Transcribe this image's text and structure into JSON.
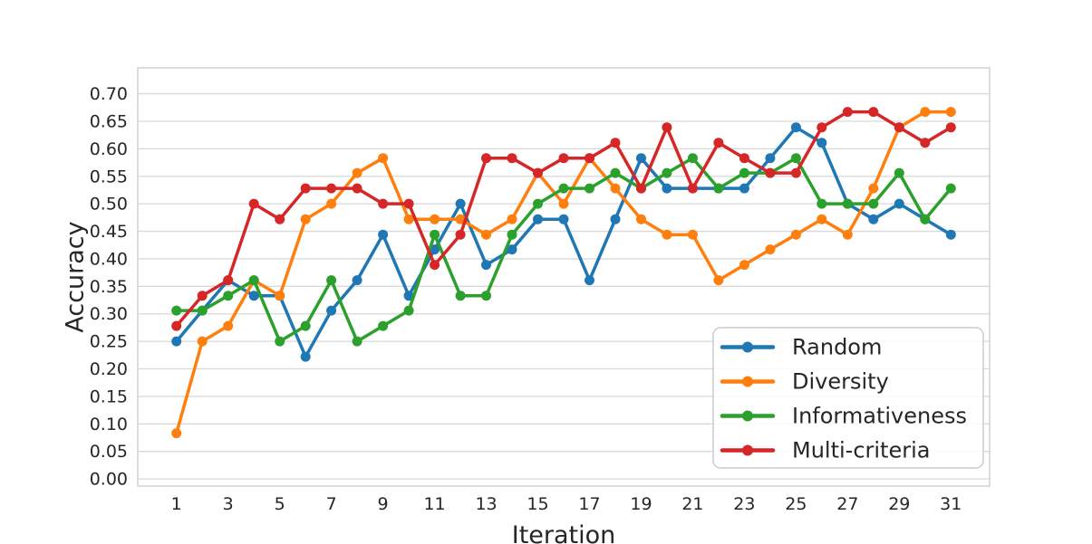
{
  "page": {
    "background": "#ffffff",
    "tick_label_color": "#262626",
    "grid_color": "#d9d9d9",
    "spine_color": "#d2d2d2"
  },
  "chart_data": {
    "type": "line",
    "title": "",
    "xlabel": "Iteration",
    "ylabel": "Accuracy",
    "grid": "horizontal",
    "xlim": [
      -0.5,
      32.5
    ],
    "ylim": [
      -0.013,
      0.747
    ],
    "x_tick_labels": [
      "1",
      "3",
      "5",
      "7",
      "9",
      "11",
      "13",
      "15",
      "17",
      "19",
      "21",
      "23",
      "25",
      "27",
      "29",
      "31"
    ],
    "x_tick_values": [
      1,
      3,
      5,
      7,
      9,
      11,
      13,
      15,
      17,
      19,
      21,
      23,
      25,
      27,
      29,
      31
    ],
    "y_tick_labels": [
      "0.00",
      "0.05",
      "0.10",
      "0.15",
      "0.20",
      "0.25",
      "0.30",
      "0.35",
      "0.40",
      "0.45",
      "0.50",
      "0.55",
      "0.60",
      "0.65",
      "0.70"
    ],
    "y_tick_values": [
      0.0,
      0.05,
      0.1,
      0.15,
      0.2,
      0.25,
      0.3,
      0.35,
      0.4,
      0.45,
      0.5,
      0.55,
      0.6,
      0.65,
      0.7
    ],
    "x": [
      1,
      2,
      3,
      4,
      5,
      6,
      7,
      8,
      9,
      10,
      11,
      12,
      13,
      14,
      15,
      16,
      17,
      18,
      19,
      20,
      21,
      22,
      23,
      24,
      25,
      26,
      27,
      28,
      29,
      30,
      31
    ],
    "legend": {
      "position": "lower-right",
      "background": "rgba(255,255,255,0.85)",
      "border_color": "#cccccc",
      "entries": [
        "Random",
        "Diversity",
        "Informativeness",
        "Multi-criteria"
      ]
    },
    "series": [
      {
        "name": "Random",
        "color": "#1f77b4",
        "values": [
          0.25,
          0.306,
          0.361,
          0.333,
          0.333,
          0.222,
          0.306,
          0.361,
          0.444,
          0.333,
          0.417,
          0.5,
          0.389,
          0.417,
          0.472,
          0.472,
          0.361,
          0.472,
          0.583,
          0.528,
          0.528,
          0.528,
          0.528,
          0.583,
          0.639,
          0.611,
          0.5,
          0.472,
          0.5,
          0.472,
          0.444
        ]
      },
      {
        "name": "Diversity",
        "color": "#ff7f0e",
        "values": [
          0.083,
          0.25,
          0.278,
          0.361,
          0.333,
          0.472,
          0.5,
          0.556,
          0.583,
          0.472,
          0.472,
          0.472,
          0.444,
          0.472,
          0.556,
          0.5,
          0.583,
          0.528,
          0.472,
          0.444,
          0.444,
          0.361,
          0.389,
          0.417,
          0.444,
          0.472,
          0.444,
          0.528,
          0.639,
          0.667,
          0.667
        ]
      },
      {
        "name": "Informativeness",
        "color": "#2ca02c",
        "values": [
          0.306,
          0.306,
          0.333,
          0.361,
          0.25,
          0.278,
          0.361,
          0.25,
          0.278,
          0.306,
          0.444,
          0.333,
          0.333,
          0.444,
          0.5,
          0.528,
          0.528,
          0.556,
          0.528,
          0.556,
          0.583,
          0.528,
          0.556,
          0.556,
          0.583,
          0.5,
          0.5,
          0.5,
          0.556,
          0.472,
          0.528
        ]
      },
      {
        "name": "Multi-criteria",
        "color": "#d62728",
        "values": [
          0.278,
          0.333,
          0.361,
          0.5,
          0.472,
          0.528,
          0.528,
          0.528,
          0.5,
          0.5,
          0.389,
          0.444,
          0.583,
          0.583,
          0.556,
          0.583,
          0.583,
          0.611,
          0.528,
          0.639,
          0.528,
          0.611,
          0.583,
          0.556,
          0.556,
          0.639,
          0.667,
          0.667,
          0.639,
          0.611,
          0.639
        ]
      }
    ]
  }
}
